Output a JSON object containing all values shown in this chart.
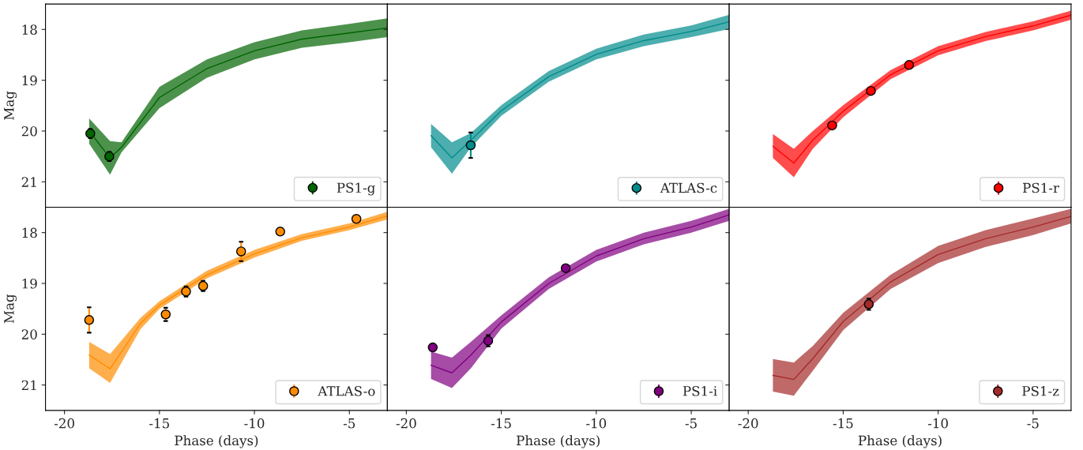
{
  "chart_data": [
    {
      "type": "line",
      "ylabel": "Mag",
      "xlim": [
        -21,
        -3
      ],
      "ylim": [
        21.5,
        17.5
      ],
      "xticks": [
        -20,
        -15,
        -10,
        -5
      ],
      "yticks": [
        18,
        19,
        20,
        21
      ],
      "tick_labels": "y",
      "legend": "bottom right",
      "series": [
        {
          "type": "line",
          "color": "#006400",
          "x": [
            -18.7,
            -17.6,
            -17,
            -15,
            -12.5,
            -10,
            -7.5,
            -5,
            -3
          ],
          "values": [
            20.0,
            20.53,
            20.32,
            19.34,
            18.77,
            18.42,
            18.19,
            18.07,
            17.97
          ],
          "lower": [
            19.75,
            20.2,
            20.22,
            19.13,
            18.59,
            18.25,
            18.02,
            17.89,
            17.78
          ],
          "upper": [
            20.25,
            20.86,
            20.42,
            19.55,
            18.95,
            18.59,
            18.36,
            18.25,
            18.15
          ]
        },
        {
          "type": "scatter",
          "marker": "circle",
          "name": "PS1-g",
          "color": "#006400",
          "x": [
            -18.64,
            -17.64
          ],
          "values": [
            20.05,
            20.5
          ],
          "errors": [
            0.09,
            0.09
          ]
        }
      ]
    },
    {
      "type": "line",
      "xlim": [
        -21,
        -3
      ],
      "ylim": [
        21.5,
        17.5
      ],
      "xticks": [
        -20,
        -15,
        -10,
        -5
      ],
      "yticks": [
        18,
        19,
        20,
        21
      ],
      "tick_labels": false,
      "legend": "bottom right",
      "series": [
        {
          "type": "line",
          "color": "#008b8b",
          "x": [
            -18.7,
            -17.6,
            -16.6,
            -15,
            -12.5,
            -10,
            -7.5,
            -5,
            -3
          ],
          "values": [
            20.09,
            20.53,
            20.18,
            19.6,
            18.93,
            18.49,
            18.22,
            18.04,
            17.85
          ],
          "lower": [
            19.86,
            20.22,
            20.04,
            19.49,
            18.82,
            18.38,
            18.1,
            17.92,
            17.71
          ],
          "upper": [
            20.32,
            20.84,
            20.32,
            19.7,
            19.03,
            18.59,
            18.33,
            18.15,
            17.99
          ]
        },
        {
          "type": "scatter",
          "marker": "circle",
          "name": "ATLAS-c",
          "color": "#008b8b",
          "x": [
            -16.61
          ],
          "values": [
            20.28
          ],
          "errors": [
            0.25
          ]
        }
      ]
    },
    {
      "type": "line",
      "xlim": [
        -21,
        -3
      ],
      "ylim": [
        21.5,
        17.5
      ],
      "xticks": [
        -20,
        -15,
        -10,
        -5
      ],
      "yticks": [
        18,
        19,
        20,
        21
      ],
      "tick_labels": false,
      "legend": "bottom right",
      "series": [
        {
          "type": "line",
          "color": "#ff0000",
          "x": [
            -18.7,
            -17.6,
            -16.6,
            -15,
            -12.5,
            -10,
            -7.5,
            -5,
            -3
          ],
          "values": [
            20.3,
            20.63,
            20.18,
            19.61,
            18.89,
            18.42,
            18.14,
            17.93,
            17.72
          ],
          "lower": [
            20.06,
            20.35,
            20.0,
            19.49,
            18.8,
            18.33,
            18.05,
            17.84,
            17.63
          ],
          "upper": [
            20.53,
            20.91,
            20.35,
            19.73,
            18.98,
            18.51,
            18.23,
            18.02,
            17.81
          ]
        },
        {
          "type": "scatter",
          "marker": "circle",
          "name": "PS1-r",
          "color": "#ff0000",
          "x": [
            -15.58,
            -13.54,
            -11.53
          ],
          "values": [
            19.89,
            19.21,
            18.7
          ],
          "errors": [
            0.02,
            0.02,
            0.02
          ]
        }
      ]
    },
    {
      "type": "line",
      "ylabel": "Mag",
      "xlabel": "Phase (days)",
      "xlim": [
        -21,
        -3
      ],
      "ylim": [
        21.5,
        17.5
      ],
      "xticks": [
        -20,
        -15,
        -10,
        -5
      ],
      "yticks": [
        18,
        19,
        20,
        21
      ],
      "legend": "bottom right",
      "series": [
        {
          "type": "line",
          "color": "#ff8c00",
          "x": [
            -18.7,
            -17.6,
            -16,
            -15,
            -12.5,
            -10,
            -7.5,
            -5,
            -3
          ],
          "values": [
            20.41,
            20.68,
            19.79,
            19.43,
            18.83,
            18.42,
            18.1,
            17.89,
            17.67
          ],
          "lower": [
            20.15,
            20.39,
            19.68,
            19.35,
            18.75,
            18.34,
            18.03,
            17.82,
            17.59
          ],
          "upper": [
            20.67,
            20.96,
            19.9,
            19.5,
            18.9,
            18.49,
            18.16,
            17.95,
            17.74
          ]
        },
        {
          "type": "scatter",
          "marker": "circle",
          "name": "ATLAS-o",
          "color": "#ff8c00",
          "x": [
            -18.7,
            -14.67,
            -13.6,
            -12.7,
            -10.7,
            -8.64,
            -4.63
          ],
          "values": [
            19.72,
            19.61,
            19.16,
            19.05,
            18.37,
            17.98,
            17.73
          ],
          "errors": [
            0.25,
            0.13,
            0.1,
            0.1,
            0.19,
            0.02,
            0.02
          ]
        }
      ]
    },
    {
      "type": "line",
      "xlabel": "Phase (days)",
      "xlim": [
        -21,
        -3
      ],
      "ylim": [
        21.5,
        17.5
      ],
      "xticks": [
        -20,
        -15,
        -10,
        -5
      ],
      "yticks": [
        18,
        19,
        20,
        21
      ],
      "tick_labels": "x",
      "legend": "bottom right",
      "series": [
        {
          "type": "line",
          "color": "#800080",
          "x": [
            -18.7,
            -17.6,
            -16.6,
            -15,
            -12.5,
            -10,
            -7.5,
            -5,
            -3
          ],
          "values": [
            20.61,
            20.76,
            20.41,
            19.76,
            19.0,
            18.46,
            18.12,
            17.89,
            17.65
          ],
          "lower": [
            20.34,
            20.46,
            20.15,
            19.63,
            18.88,
            18.34,
            18.0,
            17.77,
            17.53
          ],
          "upper": [
            20.88,
            21.06,
            20.67,
            19.89,
            19.11,
            18.57,
            18.23,
            18.0,
            17.77
          ]
        },
        {
          "type": "scatter",
          "marker": "circle",
          "name": "PS1-i",
          "color": "#800080",
          "x": [
            -18.61,
            -15.69,
            -11.61
          ],
          "values": [
            20.26,
            20.13,
            18.7
          ],
          "errors": [
            0.06,
            0.11,
            0.02
          ]
        }
      ]
    },
    {
      "type": "line",
      "xlabel": "Phase (days)",
      "xlim": [
        -21,
        -3
      ],
      "ylim": [
        21.5,
        17.5
      ],
      "xticks": [
        -20,
        -15,
        -10,
        -5
      ],
      "yticks": [
        18,
        19,
        20,
        21
      ],
      "tick_labels": "x",
      "legend": "bottom right",
      "series": [
        {
          "type": "line",
          "color": "#a52a2a",
          "x": [
            -18.7,
            -17.6,
            -16.6,
            -15,
            -12.5,
            -10,
            -7.5,
            -5,
            -3
          ],
          "values": [
            20.81,
            20.89,
            20.48,
            19.75,
            18.97,
            18.43,
            18.12,
            17.89,
            17.68
          ],
          "lower": [
            20.49,
            20.56,
            20.23,
            19.58,
            18.83,
            18.26,
            17.95,
            17.72,
            17.53
          ],
          "upper": [
            21.13,
            21.21,
            20.72,
            19.92,
            19.11,
            18.6,
            18.28,
            18.05,
            17.82
          ]
        },
        {
          "type": "scatter",
          "marker": "circle",
          "name": "PS1-z",
          "color": "#a52a2a",
          "x": [
            -13.65
          ],
          "values": [
            19.41
          ],
          "errors": [
            0.11
          ]
        }
      ]
    }
  ]
}
